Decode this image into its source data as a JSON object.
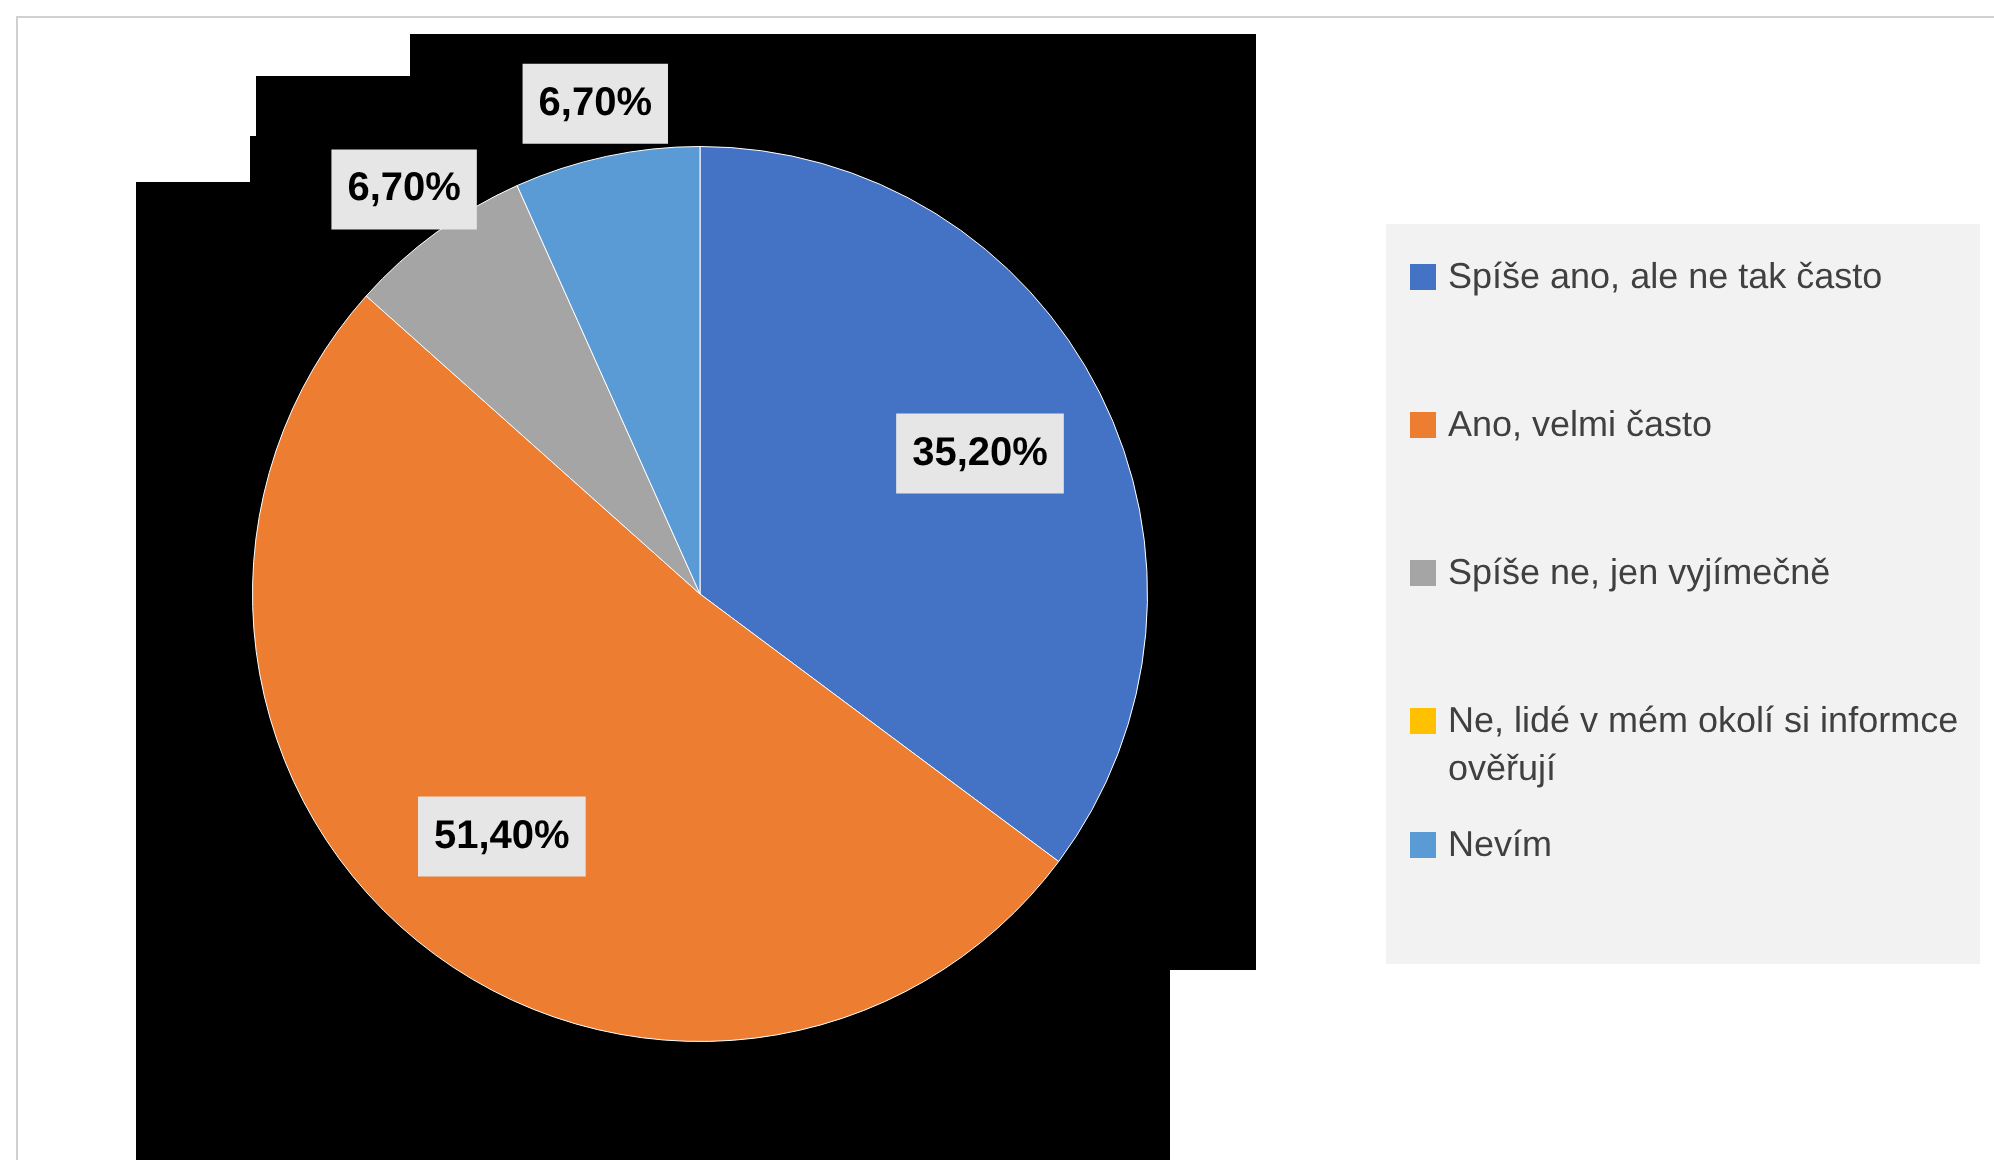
{
  "chart_data": {
    "type": "pie",
    "categories": [
      "Spíše ano, ale ne tak často",
      "Ano, velmi často",
      "Spíše ne, jen vyjímečně",
      "Ne, lidé v mém okolí si informce ověřují",
      "Nevím"
    ],
    "values": [
      35.2,
      51.4,
      6.7,
      0,
      6.7
    ],
    "colors": [
      "#4472c4",
      "#ed7d31",
      "#a5a5a5",
      "#ffc000",
      "#5b9bd5"
    ],
    "value_labels": [
      "35,20%",
      "51,40%",
      "6,70%",
      null,
      "6,70%"
    ],
    "legend": "right"
  }
}
